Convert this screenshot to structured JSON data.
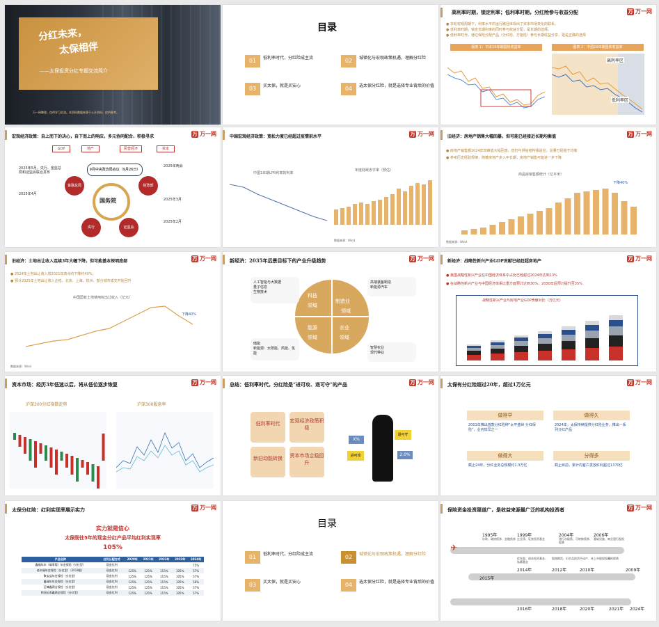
{
  "slides": {
    "s1": {
      "title": "分红未来，",
      "title2": "太保相伴",
      "subtitle": "——太保投资分红专题交流简介",
      "footer": "万一网整理，仅供学习交流。本资料数据来源于公开资料，仅供参考。"
    },
    "s2": {
      "heading": "目录",
      "items": [
        {
          "num": "01",
          "text": "低利率时代，分红险成主流"
        },
        {
          "num": "02",
          "text": "城镇化与宏观政策机遇，理解分红险"
        },
        {
          "num": "03",
          "text": "买太保，就是买安心"
        },
        {
          "num": "04",
          "text": "选太保分红险，就是选择专业背后的价值"
        }
      ]
    },
    "s3": {
      "title": "高利率时期，锁定利率；低利率时期，分红险参与收益分配",
      "bullets": [
        "● 本轮宏观周期下，利率水平的运行路径体现出了资本市场变化的联系。",
        "● 低利率时期，锁定长期利率的同时参与收益分配，是长期的选择。",
        "● 低利率时代，通过保险分配产品（分红险、万能险）参与长期收益分享，更是正确的选择"
      ],
      "chart1_label": "图表 1：日本10年期国债收益率",
      "chart2_label": "图表 2：中国10年期国债收益率",
      "tag1": "高利率区",
      "tag2": "低利率区"
    },
    "s4": {
      "title": "宏观经济政策：自上而下的决心，自下而上的响应，多元协同配合、积极寻求",
      "tags": [
        "GDP",
        "地产",
        "民营经济",
        "资本"
      ],
      "center": "国务院",
      "date_pill": "9月中央政治局会议（9月26日）",
      "left_notes": [
        "2025年5月，央行、金监总局和证监会联合发布",
        "2025年4月"
      ],
      "right_notes": [
        "2025年两会",
        "2025年3月",
        "2025年2月"
      ],
      "circles": [
        "金融总局",
        "央行",
        "证监会",
        "财政部"
      ]
    },
    "s5": {
      "title": "中国宏观经济政策：宽松力度已经超过疫情前水平",
      "chart_left": "中国1年期LPR利率的利率",
      "chart_right": "年度财政赤字率（预估）",
      "source": "数据来源：Wind"
    },
    "s6": {
      "title": "旧经济：房地产销售大幅回暴，但可能已经接近长期均衡值",
      "bullets": [
        "● 房地产销售额2024年较峰值大幅回落，但仍与供给结构相适应，总量已经趋于均衡",
        "● 参考历史经验规律，随着房地产步入中长期，房地产销售可能进一步下降"
      ],
      "chart_label": "商品房销售额统计（亿平米）",
      "down_tag": "下降40%",
      "source": "数据来源：Wind"
    },
    "s7": {
      "title": "旧经济：土地出让收入连续3年大幅下降，但可能基本探明底部",
      "bullets": [
        "● 2024年土地出让收入较2021年高点约下降约40%；",
        "● 预计2025年土地出让收入企稳，北京、上海、杭州、部分城市成交开始回升"
      ],
      "chart_label": "中国国有土地使用权出让收入（亿元）",
      "down_tag": "下降40%",
      "source": "数据来源：Wind"
    },
    "s8": {
      "title": "新经济：2035年远景目标下的产业升级趋势",
      "quadrants": [
        "科技",
        "制造业",
        "能源",
        "农业"
      ],
      "quad_sub": [
        "领域",
        "领域",
        "领域",
        "领域"
      ],
      "tl": [
        "人工智能与大数据",
        "量子信息",
        "生物技术"
      ],
      "tr": [
        "高端装备制造",
        "新能源汽车"
      ],
      "bl": [
        "储能",
        "新能源：太阳能、风能、氢能"
      ],
      "br": [
        "智慧农业",
        "现代种业"
      ]
    },
    "s9": {
      "title": "新经济：战略性新兴产业GDP贡献已经赶超房地产",
      "bullets": [
        "● 我国战略性新兴产业在中国经济体系中占比已经超过2024年达到13%",
        "● 在战略性新兴产业与中国经济体系比重方面预计达到30%，2030年后预计提升至35%"
      ],
      "chart_label": "战略性新兴产业与房地产业GDP贡献对比（万亿元）",
      "legend": [
        "新一代信息技术",
        "生物产业",
        "新能源汽车",
        "高端装备",
        "节能环保",
        "房地产业"
      ]
    },
    "s10": {
      "title": "资本市场：经历3年低迷以后，将从低位逐步恢复",
      "chart1": "沪深300分红指数走势",
      "chart2": "沪深300股息率"
    },
    "s11": {
      "title": "总结：低利率时代，分红险是“进可攻、退可守”的产品",
      "boxes": [
        "低利率时代",
        "宏观经济政策积极",
        "新旧动能转换",
        "资本市场企稳回升"
      ],
      "tags": [
        "X%",
        "进可攻",
        "退可守",
        "2.0%"
      ]
    },
    "s12": {
      "title": "太保有分红险超过20年，超过1万亿元",
      "cards": [
        {
          "num": "01",
          "head": "做得早",
          "text": "2001年推出首款分红险种“太平盛世 分红保险”，业内较早之一"
        },
        {
          "num": "02",
          "head": "做得久",
          "text": "2024年，太保持续提供分红险业务，推出一系列分红产品"
        },
        {
          "num": "03",
          "head": "做得大",
          "text": "截止24年，分红业务总规模约1.3万亿"
        },
        {
          "num": "04",
          "head": "分得多",
          "text": "截止目前，累计向客户发放红利超过1370亿"
        }
      ]
    },
    "s13": {
      "title": "太保分红险：红利实现率展示实力",
      "slogan1": "实力就是信心",
      "slogan2": "太保既往5年的现金分红产品平均红利实现率",
      "slogan3": "105%",
      "headers": [
        "产品名称",
        "红利分配方式",
        "2020年",
        "2021年",
        "2022年",
        "2023年",
        "2024年"
      ],
      "rows": [
        [
          "鑫福年年（尊享版）年金保险（分红型）",
          "现金红利",
          "",
          "",
          "",
          "",
          "75%"
        ],
        [
          "老年福年金保险（分红型）（2018版）",
          "现金红利",
          "125%",
          "125%",
          "115%",
          "105%",
          "57%"
        ],
        [
          "聚宝盆年金保险（分红型）",
          "现金红利",
          "125%",
          "125%",
          "115%",
          "105%",
          "57%"
        ],
        [
          "鑫诚年年金保险（分红型）",
          "现金红利",
          "125%",
          "125%",
          "115%",
          "105%",
          "56%"
        ],
        [
          "至尊鑫两全保险（分红型）",
          "现金红利",
          "125%",
          "125%",
          "115%",
          "105%",
          "57%"
        ],
        [
          "附加长寿鑫两全保险（分红型）",
          "现金红利",
          "125%",
          "125%",
          "115%",
          "105%",
          "57%"
        ]
      ]
    },
    "s14": {
      "heading": "目录",
      "items": [
        {
          "num": "01",
          "text": "低利率时代，分红险成主流"
        },
        {
          "num": "02",
          "text": "城镇化与宏观政策机遇，理解分红险"
        },
        {
          "num": "03",
          "text": "买太保，就是买安心"
        },
        {
          "num": "04",
          "text": "选太保分红险，就是选择专业背后的价值"
        }
      ]
    },
    "s15": {
      "title": "保险资金投资渠道广，是收益来源最广泛的机构投资者",
      "years_top": [
        "1995年",
        "1999年",
        "2004年",
        "2006年"
      ],
      "years_mid": [
        "2014年",
        "2012年",
        "2010年",
        "2009年"
      ],
      "years_low": [
        "2015年"
      ],
      "years_bot": [
        "2016年",
        "2018年",
        "2020年",
        "2021年",
        "2024年"
      ],
      "notes_top": [
        "存款、政府债券、金融债券",
        "企业债、证券投资基金",
        "银行次级债、可转换债券、股票",
        "基础设施、商业银行股权"
      ],
      "notes_mid": [
        "优先股、创业投资基金、私募基金",
        "股指期货、衍生品投资",
        "不动产、未上市股权投资",
        "无担保债"
      ]
    }
  }
}
